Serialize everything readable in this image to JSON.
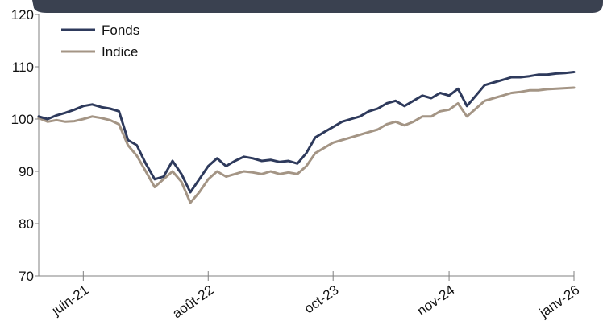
{
  "colors": {
    "header_bar": "#3a4150",
    "axis": "#808080",
    "fonds": "#2e3a5c",
    "indice": "#a49585"
  },
  "chart_data": {
    "type": "line",
    "title": "",
    "xlabel": "",
    "ylabel": "",
    "ylim": [
      70,
      120
    ],
    "yticks": [
      "70",
      "80",
      "90",
      "100",
      "110",
      "120"
    ],
    "xlim": [
      "2021-01",
      "2026-01"
    ],
    "xticks": [
      {
        "label": "juin-21",
        "date": "2021-06"
      },
      {
        "label": "août-22",
        "date": "2022-08"
      },
      {
        "label": "oct-23",
        "date": "2023-10"
      },
      {
        "label": "nov-24",
        "date": "2024-11"
      },
      {
        "label": "janv-26",
        "date": "2026-01"
      }
    ],
    "legend_position": "top-left",
    "series": [
      {
        "name": "Fonds",
        "color": "#2e3a5c",
        "x": [
          "2021-01",
          "2021-02",
          "2021-03",
          "2021-04",
          "2021-05",
          "2021-06",
          "2021-07",
          "2021-08",
          "2021-09",
          "2021-10",
          "2021-11",
          "2021-12",
          "2022-01",
          "2022-02",
          "2022-03",
          "2022-04",
          "2022-05",
          "2022-06",
          "2022-07",
          "2022-08",
          "2022-09",
          "2022-10",
          "2022-11",
          "2022-12",
          "2023-01",
          "2023-02",
          "2023-03",
          "2023-04",
          "2023-05",
          "2023-06",
          "2023-07",
          "2023-08",
          "2023-09",
          "2023-10",
          "2023-11",
          "2023-12",
          "2024-01",
          "2024-02",
          "2024-03",
          "2024-04",
          "2024-05",
          "2024-06",
          "2024-07",
          "2024-08",
          "2024-09",
          "2024-10",
          "2024-11",
          "2024-12",
          "2025-01",
          "2025-02",
          "2025-03",
          "2025-04",
          "2025-05",
          "2025-06",
          "2025-07",
          "2025-08",
          "2025-09",
          "2025-10",
          "2025-11",
          "2025-12",
          "2026-01"
        ],
        "values": [
          100.5,
          100.0,
          100.7,
          101.2,
          101.8,
          102.5,
          102.8,
          102.3,
          102.0,
          101.5,
          96.0,
          95.0,
          91.5,
          88.5,
          89.0,
          92.0,
          89.5,
          86.0,
          88.5,
          91.0,
          92.5,
          91.0,
          92.0,
          92.8,
          92.5,
          92.0,
          92.2,
          91.8,
          92.0,
          91.5,
          93.5,
          96.5,
          97.5,
          98.5,
          99.5,
          100.0,
          100.5,
          101.5,
          102.0,
          103.0,
          103.5,
          102.5,
          103.5,
          104.5,
          104.0,
          105.0,
          104.5,
          105.8,
          102.5,
          104.5,
          106.5,
          107.0,
          107.5,
          108.0,
          108.0,
          108.2,
          108.5,
          108.5,
          108.7,
          108.8,
          109.0
        ]
      },
      {
        "name": "Indice",
        "color": "#a49585",
        "x": [
          "2021-01",
          "2021-02",
          "2021-03",
          "2021-04",
          "2021-05",
          "2021-06",
          "2021-07",
          "2021-08",
          "2021-09",
          "2021-10",
          "2021-11",
          "2021-12",
          "2022-01",
          "2022-02",
          "2022-03",
          "2022-04",
          "2022-05",
          "2022-06",
          "2022-07",
          "2022-08",
          "2022-09",
          "2022-10",
          "2022-11",
          "2022-12",
          "2023-01",
          "2023-02",
          "2023-03",
          "2023-04",
          "2023-05",
          "2023-06",
          "2023-07",
          "2023-08",
          "2023-09",
          "2023-10",
          "2023-11",
          "2023-12",
          "2024-01",
          "2024-02",
          "2024-03",
          "2024-04",
          "2024-05",
          "2024-06",
          "2024-07",
          "2024-08",
          "2024-09",
          "2024-10",
          "2024-11",
          "2024-12",
          "2025-01",
          "2025-02",
          "2025-03",
          "2025-04",
          "2025-05",
          "2025-06",
          "2025-07",
          "2025-08",
          "2025-09",
          "2025-10",
          "2025-11",
          "2025-12",
          "2026-01"
        ],
        "values": [
          100.2,
          99.5,
          99.8,
          99.5,
          99.6,
          100.0,
          100.5,
          100.2,
          99.8,
          99.0,
          95.0,
          93.0,
          90.0,
          87.0,
          88.5,
          90.0,
          88.0,
          84.0,
          86.0,
          88.5,
          90.0,
          89.0,
          89.5,
          90.0,
          89.8,
          89.5,
          90.0,
          89.5,
          89.8,
          89.5,
          91.0,
          93.5,
          94.5,
          95.5,
          96.0,
          96.5,
          97.0,
          97.5,
          98.0,
          99.0,
          99.5,
          98.8,
          99.5,
          100.5,
          100.5,
          101.5,
          101.8,
          103.0,
          100.5,
          102.0,
          103.5,
          104.0,
          104.5,
          105.0,
          105.2,
          105.5,
          105.5,
          105.7,
          105.8,
          105.9,
          106.0
        ]
      }
    ]
  }
}
